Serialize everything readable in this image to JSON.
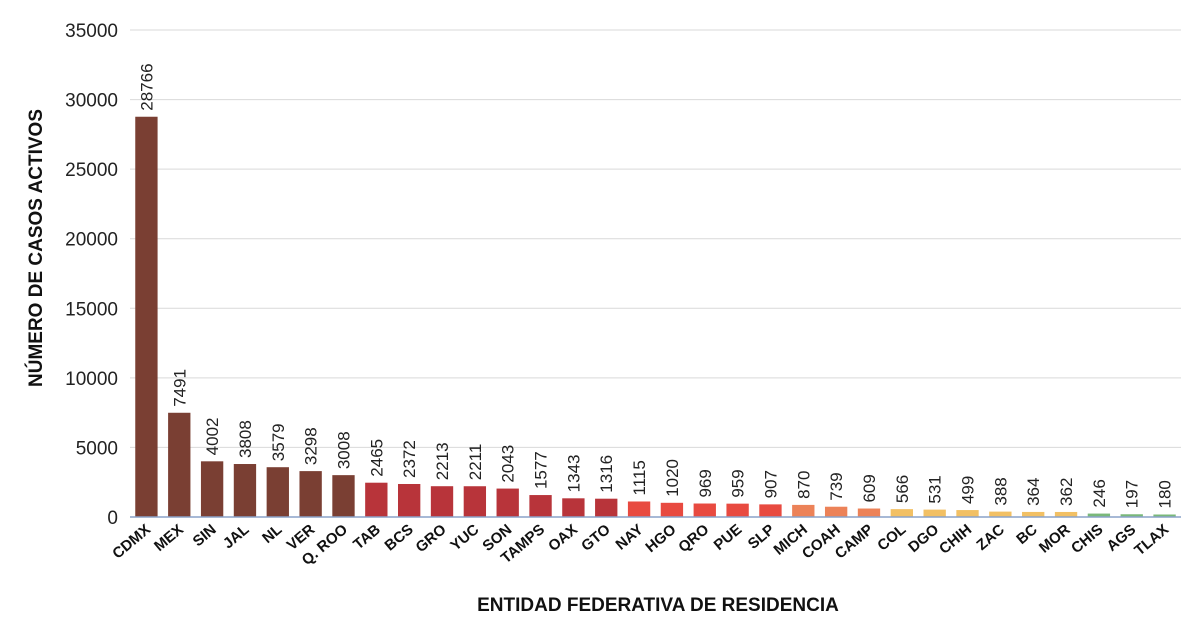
{
  "chart_data": {
    "type": "bar",
    "title": "",
    "xlabel": "ENTIDAD FEDERATIVA DE RESIDENCIA",
    "ylabel": "NÚMERO DE CASOS ACTIVOS",
    "ylim": [
      0,
      35000
    ],
    "yticks": [
      0,
      5000,
      10000,
      15000,
      20000,
      25000,
      30000,
      35000
    ],
    "grid": true,
    "legend": "none",
    "categories": [
      "CDMX",
      "MEX",
      "SIN",
      "JAL",
      "NL",
      "VER",
      "Q. ROO",
      "TAB",
      "BCS",
      "GRO",
      "YUC",
      "SON",
      "TAMPS",
      "OAX",
      "GTO",
      "NAY",
      "HGO",
      "QRO",
      "PUE",
      "SLP",
      "MICH",
      "COAH",
      "CAMP",
      "COL",
      "DGO",
      "CHIH",
      "ZAC",
      "BC",
      "MOR",
      "CHIS",
      "AGS",
      "TLAX"
    ],
    "values": [
      28766,
      7491,
      4002,
      3808,
      3579,
      3298,
      3008,
      2465,
      2372,
      2213,
      2211,
      2043,
      1577,
      1343,
      1316,
      1115,
      1020,
      969,
      959,
      907,
      870,
      739,
      609,
      566,
      531,
      499,
      388,
      364,
      362,
      246,
      197,
      180
    ],
    "colors": [
      "#7a3f33",
      "#7a3f33",
      "#7a3f33",
      "#7a3f33",
      "#7a3f33",
      "#7a3f33",
      "#7a3f33",
      "#b8343a",
      "#b8343a",
      "#b8343a",
      "#b8343a",
      "#b8343a",
      "#b8343a",
      "#b8343a",
      "#b8343a",
      "#e84a40",
      "#e84a40",
      "#e84a40",
      "#e84a40",
      "#e84a40",
      "#ec8258",
      "#ec8258",
      "#ec8258",
      "#f2c064",
      "#f2c064",
      "#f2c064",
      "#f2c064",
      "#f2c064",
      "#f2c064",
      "#7ab87a",
      "#7ab87a",
      "#7ab87a"
    ]
  }
}
